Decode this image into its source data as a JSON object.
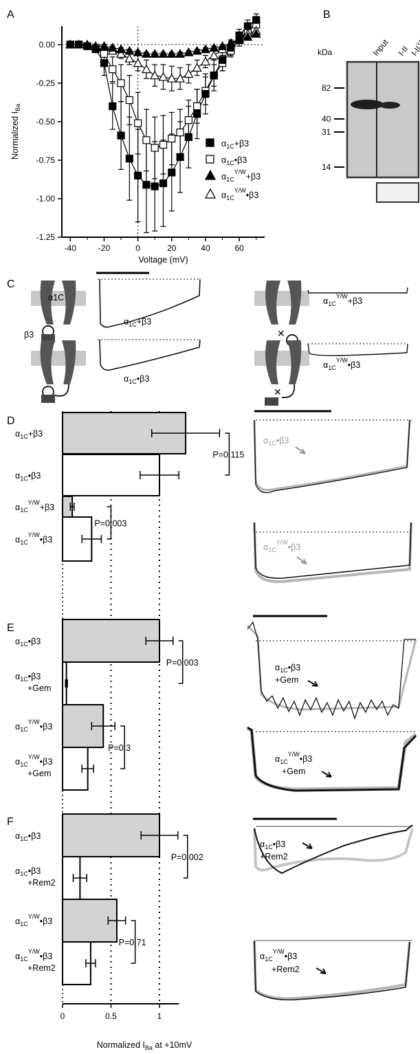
{
  "panels": {
    "A": "A",
    "B": "B",
    "C": "C",
    "D": "D",
    "E": "E",
    "F": "F"
  },
  "colors": {
    "filled_bar": "#d3d3d3",
    "open_bar": "#ffffff",
    "trace_black": "#111111",
    "trace_grey": "#b5b5b5"
  },
  "chart_data": [
    {
      "id": "A",
      "type": "scatter",
      "xlabel": "Voltage (mV)",
      "ylabel": "Normalized I",
      "ylabel_sub": "Ba",
      "xlim": [
        -45,
        75
      ],
      "ylim": [
        -1.25,
        0.12
      ],
      "xticks": [
        -40,
        -20,
        0,
        20,
        40,
        60
      ],
      "yticks": [
        0.0,
        -0.25,
        -0.5,
        -0.75,
        -1.0,
        -1.25
      ],
      "ytick_labels": [
        "0.00",
        "-0.25",
        "-0.50",
        "-0.75",
        "-1.00",
        "-1.25"
      ],
      "legend_position": "lower-right",
      "series": [
        {
          "name": "α1C+β3",
          "marker": "square-filled",
          "x": [
            -40,
            -35,
            -30,
            -25,
            -20,
            -15,
            -10,
            -5,
            0,
            5,
            10,
            15,
            20,
            25,
            30,
            35,
            40,
            45,
            50,
            55,
            60,
            65,
            70
          ],
          "y": [
            0,
            0,
            -0.01,
            -0.03,
            -0.12,
            -0.4,
            -0.59,
            -0.74,
            -0.85,
            -0.91,
            -0.92,
            -0.9,
            -0.83,
            -0.73,
            -0.6,
            -0.45,
            -0.32,
            -0.2,
            -0.1,
            -0.02,
            0.06,
            0.12,
            0.16
          ],
          "err": [
            0,
            0,
            0.01,
            0.02,
            0.08,
            0.15,
            0.22,
            0.27,
            0.3,
            0.31,
            0.29,
            0.28,
            0.25,
            0.23,
            0.2,
            0.16,
            0.13,
            0.1,
            0.07,
            0.05,
            0.04,
            0.04,
            0.04
          ]
        },
        {
          "name": "α1C•β3",
          "marker": "square-open",
          "x": [
            -40,
            -35,
            -30,
            -25,
            -20,
            -15,
            -10,
            -5,
            0,
            5,
            10,
            15,
            20,
            25,
            30,
            35,
            40,
            45,
            50,
            55,
            60,
            65,
            70
          ],
          "y": [
            0,
            0,
            -0.01,
            -0.02,
            -0.06,
            -0.16,
            -0.25,
            -0.36,
            -0.51,
            -0.62,
            -0.67,
            -0.65,
            -0.61,
            -0.57,
            -0.49,
            -0.4,
            -0.3,
            -0.2,
            -0.12,
            -0.04,
            0.03,
            0.09,
            0.13
          ],
          "err": [
            0,
            0,
            0.01,
            0.02,
            0.04,
            0.08,
            0.12,
            0.16,
            0.2,
            0.2,
            0.2,
            0.19,
            0.17,
            0.15,
            0.13,
            0.11,
            0.09,
            0.07,
            0.05,
            0.04,
            0.04,
            0.04,
            0.04
          ]
        },
        {
          "name": "α1C Y/W+β3",
          "marker": "triangle-filled",
          "x": [
            -40,
            -35,
            -30,
            -25,
            -20,
            -15,
            -10,
            -5,
            0,
            5,
            10,
            15,
            20,
            25,
            30,
            35,
            40,
            45,
            50,
            55,
            60,
            65,
            70
          ],
          "y": [
            0,
            0,
            0,
            -0.01,
            -0.01,
            -0.02,
            -0.03,
            -0.04,
            -0.05,
            -0.06,
            -0.06,
            -0.06,
            -0.06,
            -0.06,
            -0.05,
            -0.04,
            -0.03,
            -0.02,
            -0.01,
            0.01,
            0.03,
            0.05,
            0.07
          ],
          "err": [
            0,
            0,
            0,
            0.01,
            0.01,
            0.01,
            0.01,
            0.01,
            0.01,
            0.01,
            0.01,
            0.01,
            0.01,
            0.01,
            0.01,
            0.01,
            0.01,
            0.01,
            0.01,
            0.01,
            0.01,
            0.01,
            0.01
          ]
        },
        {
          "name": "α1C Y/W•β3",
          "marker": "triangle-open",
          "x": [
            -40,
            -35,
            -30,
            -25,
            -20,
            -15,
            -10,
            -5,
            0,
            5,
            10,
            15,
            20,
            25,
            30,
            35,
            40,
            45,
            50,
            55,
            60,
            65,
            70
          ],
          "y": [
            0,
            0,
            0,
            -0.01,
            -0.01,
            -0.04,
            -0.06,
            -0.09,
            -0.12,
            -0.16,
            -0.2,
            -0.21,
            -0.22,
            -0.22,
            -0.19,
            -0.15,
            -0.11,
            -0.07,
            -0.03,
            0.01,
            0.04,
            0.07,
            0.09
          ],
          "err": [
            0,
            0,
            0,
            0.01,
            0.01,
            0.02,
            0.03,
            0.04,
            0.05,
            0.06,
            0.07,
            0.08,
            0.08,
            0.07,
            0.06,
            0.05,
            0.04,
            0.03,
            0.02,
            0.02,
            0.02,
            0.02,
            0.02
          ]
        }
      ]
    },
    {
      "id": "DEF",
      "type": "bar",
      "orientation": "horizontal",
      "xlabel": "Normalized I",
      "xlabel_sub": "Ba",
      "xlabel_suffix": " at +10mV",
      "xlim": [
        0,
        1.2
      ],
      "xticks": [
        0,
        0.5,
        1
      ],
      "xtick_labels": [
        "0",
        "0.5",
        "1"
      ],
      "groups": [
        {
          "panel": "D",
          "bars": [
            {
              "label": "α1C+β3",
              "value": 1.27,
              "err": 0.35,
              "fill": "filled"
            },
            {
              "label": "α1C•β3",
              "value": 1.0,
              "err": 0.2,
              "fill": "open"
            },
            {
              "label": "α1C Y/W+β3",
              "value": 0.1,
              "err": 0.02,
              "fill": "filled"
            },
            {
              "label": "α1C Y/W•β3",
              "value": 0.3,
              "err": 0.1,
              "fill": "open"
            }
          ],
          "p_values": [
            "P=0.115",
            "P=0.003"
          ]
        },
        {
          "panel": "E",
          "bars": [
            {
              "label": "α1C•β3",
              "value": 1.0,
              "err": 0.14,
              "fill": "filled"
            },
            {
              "label": "α1C•β3 +Gem",
              "value": 0.04,
              "err": 0.01,
              "fill": "open"
            },
            {
              "label": "α1C Y/W•β3",
              "value": 0.42,
              "err": 0.12,
              "fill": "filled"
            },
            {
              "label": "α1C Y/W•β3 +Gem",
              "value": 0.26,
              "err": 0.06,
              "fill": "open"
            }
          ],
          "p_values": [
            "P=0.003",
            "P=0.3"
          ]
        },
        {
          "panel": "F",
          "bars": [
            {
              "label": "α1C•β3",
              "value": 1.0,
              "err": 0.19,
              "fill": "filled"
            },
            {
              "label": "α1C•β3 +Rem2",
              "value": 0.18,
              "err": 0.07,
              "fill": "open"
            },
            {
              "label": "α1C Y/W•β3",
              "value": 0.56,
              "err": 0.09,
              "fill": "filled"
            },
            {
              "label": "α1C Y/W•β3 +Rem2",
              "value": 0.29,
              "err": 0.05,
              "fill": "open"
            }
          ],
          "p_values": [
            "P=0.002",
            "P=0.71"
          ]
        }
      ]
    }
  ],
  "blot": {
    "units": "kDa",
    "lanes": [
      "Input",
      "I-II",
      "I-II Y/W"
    ],
    "markers": [
      "82",
      "40",
      "31",
      "14"
    ]
  },
  "traces": {
    "C": [
      "α1C+β3",
      "α1C•β3",
      "α1C Y/W+β3",
      "α1C Y/W•β3"
    ],
    "C_channel_label": "α1C",
    "C_beta_label": "β3",
    "D": [
      "α1C•β3",
      "α1C Y/W•β3"
    ],
    "E": [
      "α1C•β3 +Gem",
      "α1C Y/W•β3 +Gem"
    ],
    "F": [
      "α1C•β3 +Rem2",
      "α1C Y/W•β3 +Rem2"
    ]
  }
}
